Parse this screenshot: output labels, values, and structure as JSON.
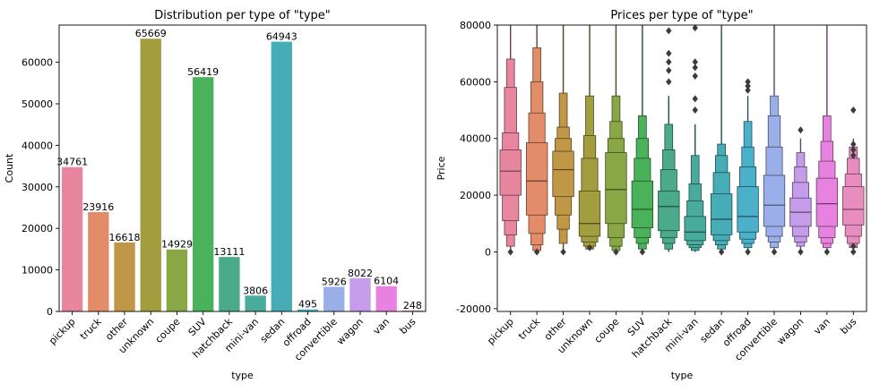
{
  "chart_data": [
    {
      "type": "bar",
      "title": "Distribution per type of \"type\"",
      "xlabel": "type",
      "ylabel": "Count",
      "ylim": [
        0,
        68950
      ],
      "yticks": [
        0,
        10000,
        20000,
        30000,
        40000,
        50000,
        60000
      ],
      "categories": [
        "pickup",
        "truck",
        "other",
        "unknown",
        "coupe",
        "SUV",
        "hatchback",
        "mini-van",
        "sedan",
        "offroad",
        "convertible",
        "wagon",
        "van",
        "bus"
      ],
      "values": [
        34761,
        23916,
        16618,
        65669,
        14929,
        56419,
        13111,
        3806,
        64943,
        495,
        5926,
        8022,
        6104,
        248
      ],
      "data_labels": [
        "34761",
        "23916",
        "16618",
        "65669",
        "14929",
        "56419",
        "13111",
        "3806",
        "64943",
        "495",
        "5926",
        "8022",
        "6104",
        "248"
      ],
      "colors": [
        "#e8869e",
        "#e38c69",
        "#c09747",
        "#a29e3f",
        "#8aa746",
        "#4ab25a",
        "#4aaa8a",
        "#48ab9c",
        "#46acb6",
        "#4bb0c9",
        "#9aaeea",
        "#c49ce9",
        "#e882e0",
        "#e98cbf"
      ],
      "grid": false,
      "legend": "none"
    },
    {
      "type": "boxen",
      "title": "Prices per type of \"type\"",
      "xlabel": "type",
      "ylabel": "Price",
      "ylim": [
        -21000,
        80000
      ],
      "yticks": [
        -20000,
        0,
        20000,
        40000,
        60000,
        80000
      ],
      "categories": [
        "pickup",
        "truck",
        "other",
        "unknown",
        "coupe",
        "SUV",
        "hatchback",
        "mini-van",
        "sedan",
        "offroad",
        "convertible",
        "wagon",
        "van",
        "bus"
      ],
      "series": [
        {
          "q1": 20000,
          "median": 28500,
          "q3": 36000,
          "levels": [
            [
              11000,
              42000
            ],
            [
              6000,
              58000
            ],
            [
              2000,
              68000
            ]
          ],
          "whisker": [
            0,
            80000
          ],
          "outliers": [
            0
          ]
        },
        {
          "q1": 13000,
          "median": 25000,
          "q3": 38500,
          "levels": [
            [
              6500,
              49000
            ],
            [
              2500,
              60000
            ],
            [
              500,
              72000
            ]
          ],
          "whisker": [
            0,
            80000
          ],
          "outliers": [
            0
          ]
        },
        {
          "q1": 19500,
          "median": 29000,
          "q3": 35500,
          "levels": [
            [
              13000,
              40000
            ],
            [
              8000,
              44000
            ],
            [
              3000,
              56000
            ]
          ],
          "whisker": [
            0,
            80000
          ],
          "outliers": [
            0
          ]
        },
        {
          "q1": 5500,
          "median": 10000,
          "q3": 21500,
          "levels": [
            [
              3500,
              33000
            ],
            [
              2000,
              41000
            ],
            [
              1000,
              55000
            ]
          ],
          "whisker": [
            500,
            80000
          ],
          "outliers": [
            1500
          ]
        },
        {
          "q1": 10000,
          "median": 22000,
          "q3": 35000,
          "levels": [
            [
              5000,
              40000
            ],
            [
              2000,
              46000
            ],
            [
              500,
              55000
            ]
          ],
          "whisker": [
            0,
            80000
          ],
          "outliers": [
            0
          ]
        },
        {
          "q1": 8500,
          "median": 15000,
          "q3": 25000,
          "levels": [
            [
              5000,
              33000
            ],
            [
              3000,
              40000
            ],
            [
              1000,
              48000
            ]
          ],
          "whisker": [
            0,
            80000
          ],
          "outliers": [
            0
          ]
        },
        {
          "q1": 7500,
          "median": 16000,
          "q3": 21500,
          "levels": [
            [
              5000,
              29000
            ],
            [
              3000,
              36000
            ],
            [
              1000,
              45000
            ]
          ],
          "whisker": [
            0,
            55000
          ],
          "outliers": [
            60000,
            64000,
            67000,
            70000,
            78000
          ]
        },
        {
          "q1": 4000,
          "median": 7000,
          "q3": 12500,
          "levels": [
            [
              2500,
              18000
            ],
            [
              1500,
              24000
            ],
            [
              500,
              34000
            ]
          ],
          "whisker": [
            0,
            45000
          ],
          "outliers": [
            50000,
            54000,
            62000,
            65000,
            67000,
            79000
          ]
        },
        {
          "q1": 6000,
          "median": 11500,
          "q3": 20500,
          "levels": [
            [
              4000,
              28000
            ],
            [
              2500,
              34000
            ],
            [
              1000,
              38000
            ]
          ],
          "whisker": [
            0,
            80000
          ],
          "outliers": [
            0
          ]
        },
        {
          "q1": 7000,
          "median": 12500,
          "q3": 23000,
          "levels": [
            [
              4500,
              30000
            ],
            [
              3000,
              37000
            ],
            [
              1500,
              46000
            ]
          ],
          "whisker": [
            0,
            55000
          ],
          "outliers": [
            0,
            57000,
            58500,
            60000
          ]
        },
        {
          "q1": 9000,
          "median": 16500,
          "q3": 27000,
          "levels": [
            [
              5500,
              37000
            ],
            [
              3500,
              48000
            ],
            [
              1500,
              55000
            ]
          ],
          "whisker": [
            0,
            80000
          ],
          "outliers": [
            0
          ]
        },
        {
          "q1": 9000,
          "median": 14000,
          "q3": 19000,
          "levels": [
            [
              5500,
              24500
            ],
            [
              3500,
              30000
            ],
            [
              2000,
              35000
            ]
          ],
          "whisker": [
            0,
            40000
          ],
          "outliers": [
            0,
            43000
          ]
        },
        {
          "q1": 9000,
          "median": 17000,
          "q3": 26000,
          "levels": [
            [
              5000,
              32000
            ],
            [
              3000,
              39000
            ],
            [
              1500,
              48000
            ]
          ],
          "whisker": [
            0,
            80000
          ],
          "outliers": [
            0
          ]
        },
        {
          "q1": 9500,
          "median": 15000,
          "q3": 23000,
          "levels": [
            [
              5500,
              27500
            ],
            [
              3000,
              33000
            ],
            [
              1500,
              37000
            ]
          ],
          "whisker": [
            500,
            40000
          ],
          "outliers": [
            0,
            2000,
            34000,
            36000,
            38000,
            50000
          ]
        }
      ],
      "colors": [
        "#e8869e",
        "#e38c69",
        "#c09747",
        "#a29e3f",
        "#8aa746",
        "#4ab25a",
        "#4aaa8a",
        "#48ab9c",
        "#46acb6",
        "#4bb0c9",
        "#9aaeea",
        "#c49ce9",
        "#e882e0",
        "#e98cbf"
      ],
      "grid": false,
      "legend": "none"
    }
  ]
}
